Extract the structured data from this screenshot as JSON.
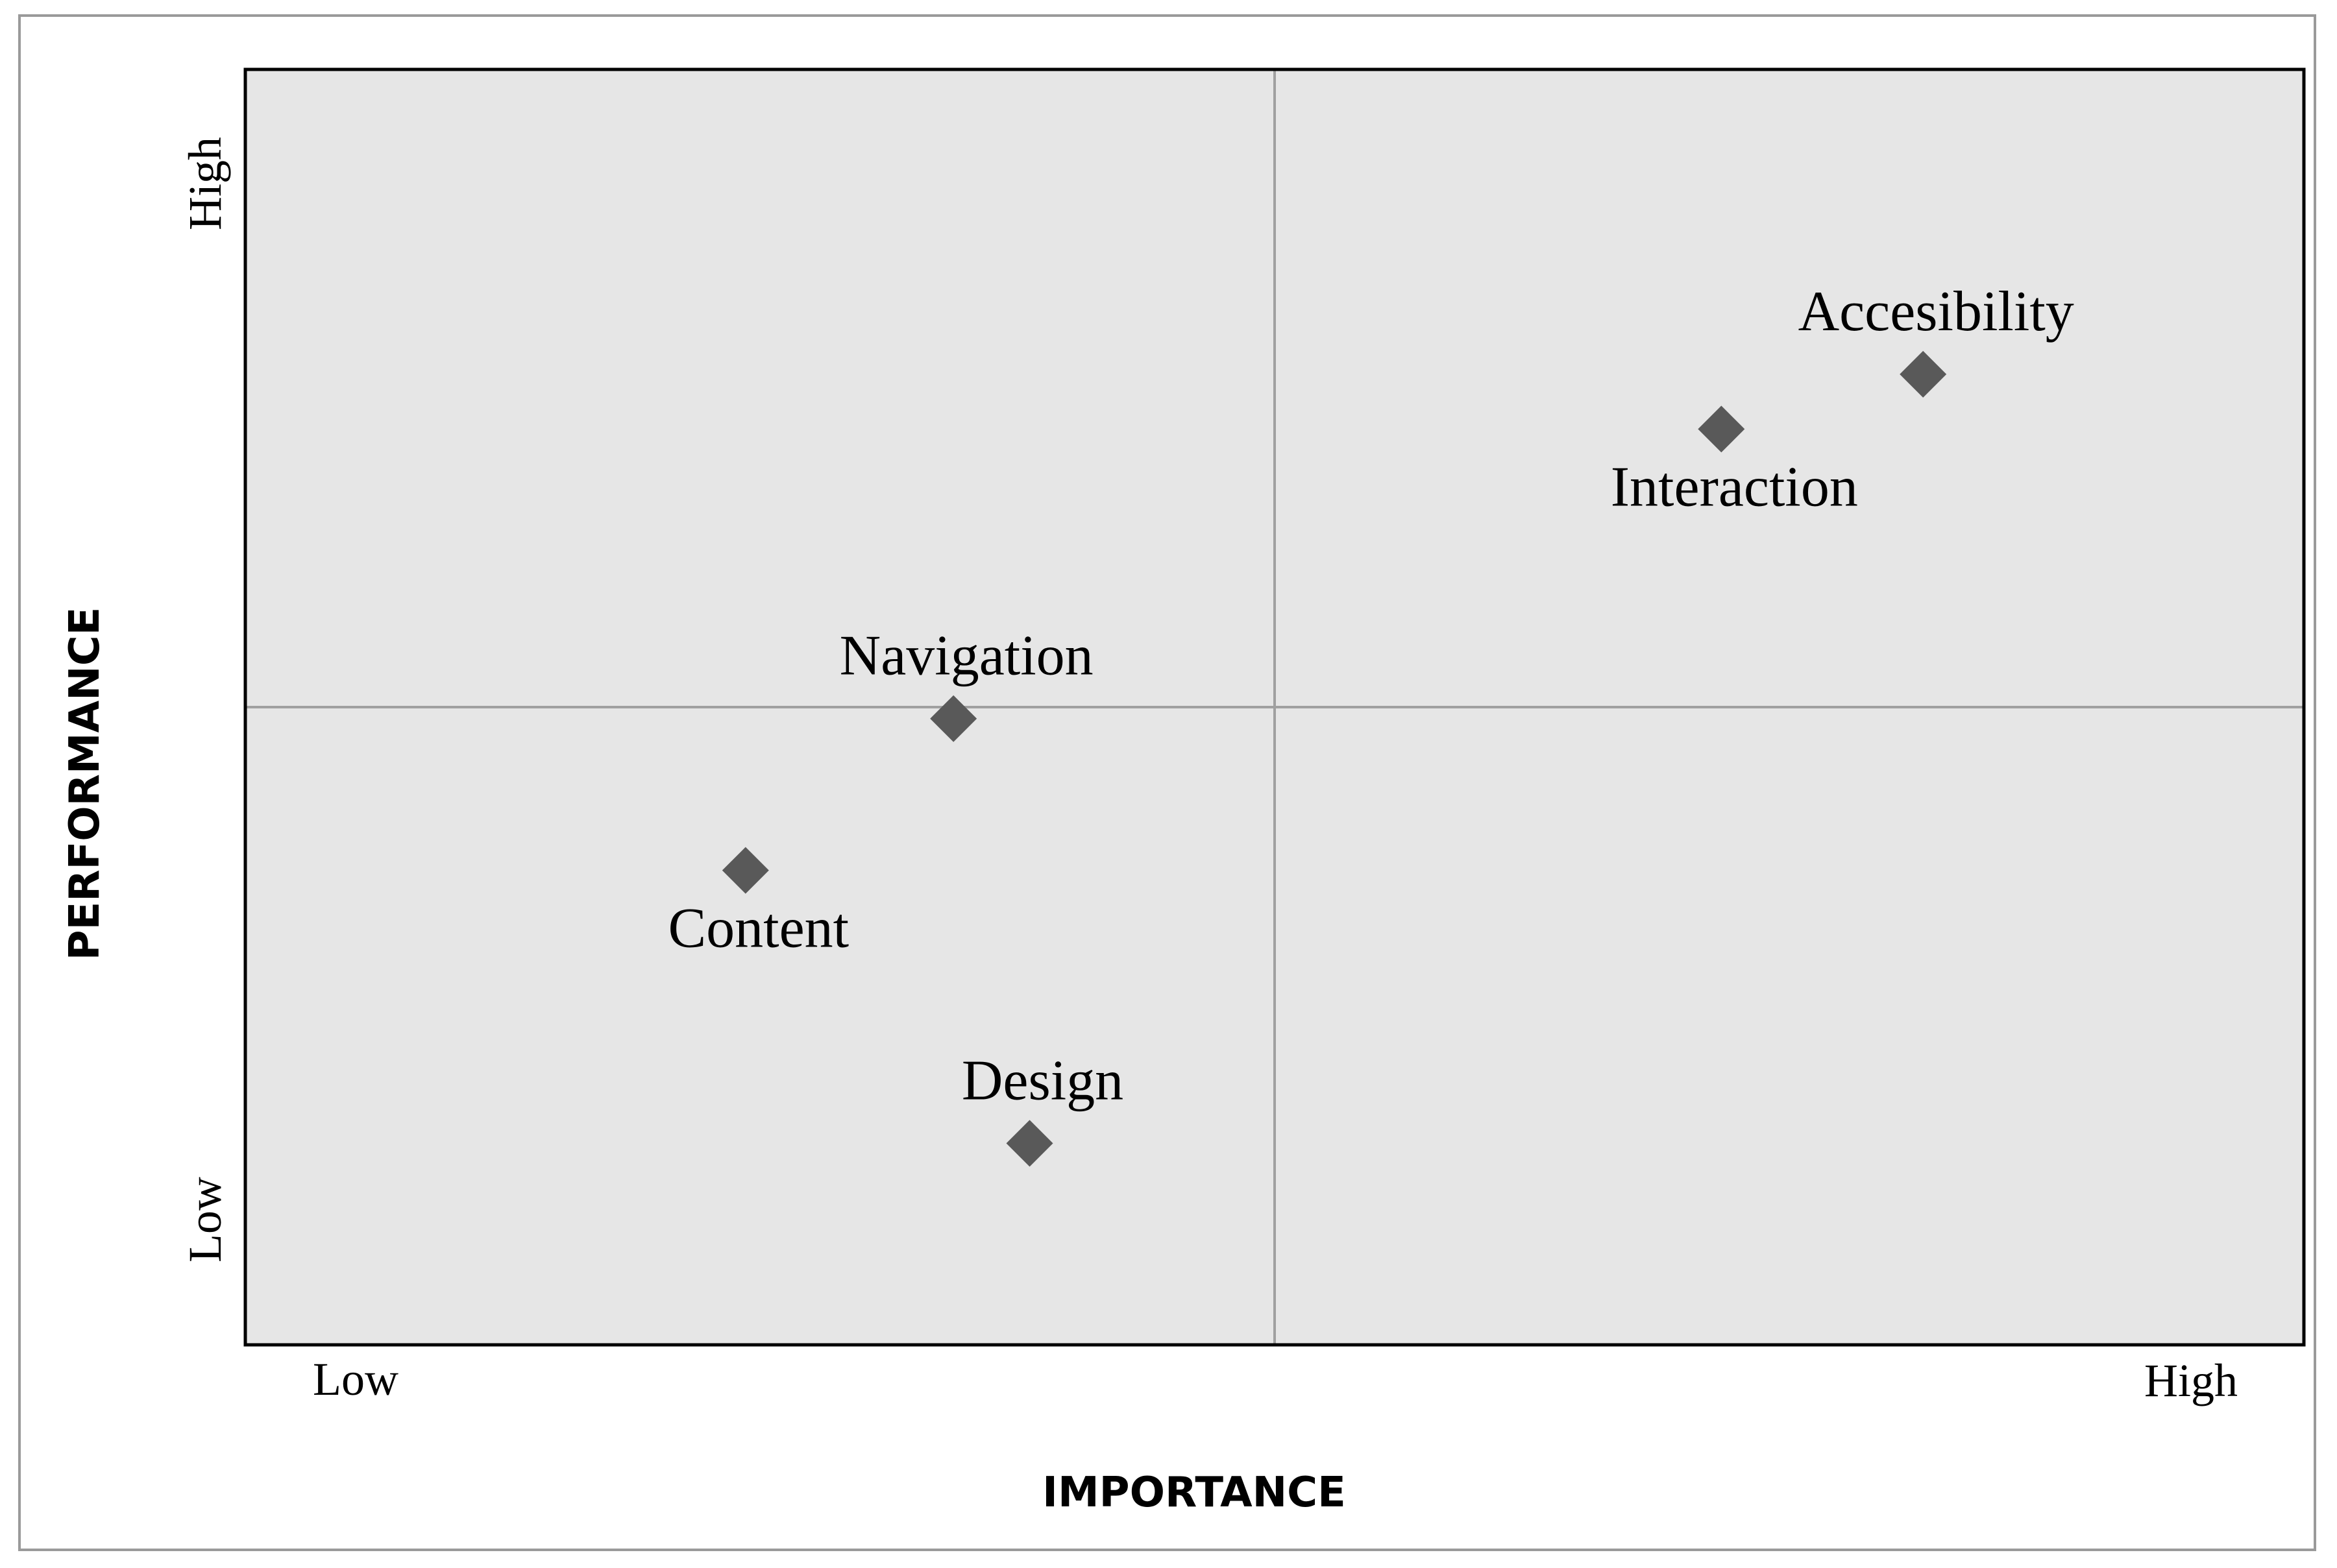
{
  "chart_data": {
    "type": "scatter",
    "title": "",
    "xlabel": "IMPORTANCE",
    "ylabel": "PERFORMANCE",
    "x_tick_labels": {
      "low": "Low",
      "high": "High"
    },
    "y_tick_labels": {
      "low": "Low",
      "high": "High"
    },
    "xlim": [
      0,
      100
    ],
    "ylim": [
      0,
      100
    ],
    "quadrant_dividers": {
      "x": 50,
      "y": 50
    },
    "grid": false,
    "legend": "none",
    "colors": {
      "plot_background": "#e6e6e6",
      "marker": "#595959",
      "divider": "#a0a0a0",
      "border": "#000000"
    },
    "points": [
      {
        "label": "Accesibility",
        "x": 81.5,
        "y": 76.1,
        "label_position": "above"
      },
      {
        "label": "Interaction",
        "x": 71.7,
        "y": 71.8,
        "label_position": "below"
      },
      {
        "label": "Navigation",
        "x": 34.4,
        "y": 49.1,
        "label_position": "above"
      },
      {
        "label": "Content",
        "x": 24.3,
        "y": 37.2,
        "label_position": "below"
      },
      {
        "label": "Design",
        "x": 38.1,
        "y": 15.8,
        "label_position": "above"
      }
    ]
  }
}
